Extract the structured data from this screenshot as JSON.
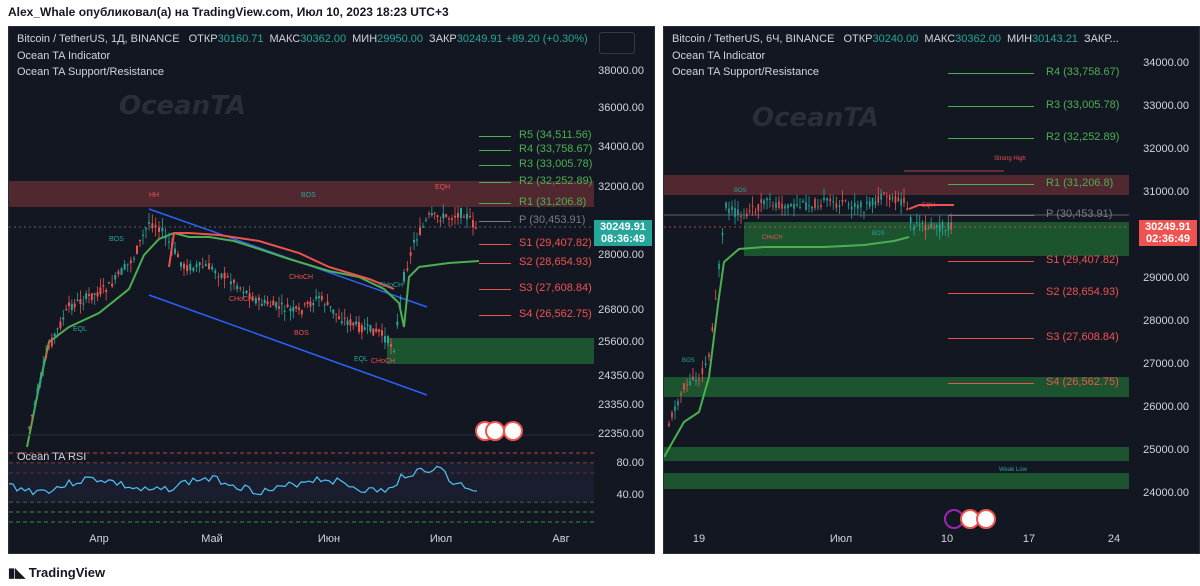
{
  "header": {
    "text": "Alex_Whale опубликовал(а) на TradingView.com, Июл 10, 2023 18:23 UTC+3"
  },
  "footer": {
    "brand": "TradingView"
  },
  "colors": {
    "up": "#26a69a",
    "down": "#ef5350",
    "bg": "#131722",
    "zone_red": "#5d2a33",
    "zone_green": "#1e5b32",
    "trend_blue": "#2962ff"
  },
  "left_chart": {
    "symbol": "Bitcoin / TetherUS, 1Д, BINANCE",
    "ohlc": [
      {
        "k": "ОТКР",
        "v": "30160.71"
      },
      {
        "k": "МАКС",
        "v": "30362.00"
      },
      {
        "k": "МИН",
        "v": "29950.00"
      },
      {
        "k": "ЗАКР",
        "v": "30249.91"
      }
    ],
    "change": "+89.20 (+0.30%)",
    "indicators": [
      "Ocean TA Indicator",
      "Ocean TA Support/Resistance"
    ],
    "watermark": "OceanTA",
    "price_tag": {
      "price": "30249.91",
      "timer": "08:36:49"
    },
    "y_ticks": [
      "38000.00",
      "36000.00",
      "34000.00",
      "32000.00",
      "28000.00",
      "26800.00",
      "25600.00",
      "24350.00",
      "23350.00",
      "22350.00"
    ],
    "x_ticks": [
      "Апр",
      "Май",
      "Июн",
      "Июл",
      "Авг"
    ],
    "levels": [
      {
        "label": "R5 (34,511.56)",
        "type": "r"
      },
      {
        "label": "R4 (33,758.67)",
        "type": "r"
      },
      {
        "label": "R3 (33,005.78)",
        "type": "r"
      },
      {
        "label": "R2 (32,252.89)",
        "type": "r"
      },
      {
        "label": "R1 (31,206.8)",
        "type": "r"
      },
      {
        "label": "P (30,453.91)",
        "type": "p"
      },
      {
        "label": "S1 (29,407.82)",
        "type": "s"
      },
      {
        "label": "S2 (28,654.93)",
        "type": "s"
      },
      {
        "label": "S3 (27,608.84)",
        "type": "s"
      },
      {
        "label": "S4 (26,562.75)",
        "type": "s"
      }
    ],
    "annotations": [
      "HH",
      "BOS",
      "EQH",
      "BOS",
      "EQL",
      "CHoCH",
      "CHoCH",
      "CHoCH",
      "BOS",
      "EQL",
      "CHoCH"
    ],
    "rsi": {
      "label": "Ocean TA RSI",
      "ticks": [
        "80.00",
        "40.00"
      ]
    }
  },
  "right_chart": {
    "symbol": "Bitcoin / TetherUS, 6Ч, BINANCE",
    "ohlc": [
      {
        "k": "ОТКР",
        "v": "30240.00"
      },
      {
        "k": "МАКС",
        "v": "30362.00"
      },
      {
        "k": "МИН",
        "v": "30143.21"
      },
      {
        "k": "ЗАКР...",
        "v": ""
      }
    ],
    "indicators": [
      "Ocean TA Indicator",
      "Ocean TA Support/Resistance"
    ],
    "watermark": "OceanTA",
    "price_tag": {
      "price": "30249.91",
      "timer": "02:36:49"
    },
    "y_ticks": [
      "34000.00",
      "33000.00",
      "32000.00",
      "31000.00",
      "30000.00",
      "29000.00",
      "28000.00",
      "27000.00",
      "26000.00",
      "25000.00",
      "24000.00"
    ],
    "x_ticks": [
      "19",
      "Июл",
      "10",
      "17",
      "24"
    ],
    "levels": [
      {
        "label": "R4 (33,758.67)",
        "type": "r"
      },
      {
        "label": "R3 (33,005.78)",
        "type": "r"
      },
      {
        "label": "R2 (32,252.89)",
        "type": "r"
      },
      {
        "label": "R1 (31,206.8)",
        "type": "r"
      },
      {
        "label": "P (30,453.91)",
        "type": "p"
      },
      {
        "label": "S1 (29,407.82)",
        "type": "s"
      },
      {
        "label": "S2 (28,654.93)",
        "type": "s"
      },
      {
        "label": "S3 (27,608.84)",
        "type": "s"
      },
      {
        "label": "S4 (26,562.75)",
        "type": "s"
      }
    ],
    "annotations": [
      "Strong High",
      "BOS",
      "EQH",
      "CHoCH",
      "BOS",
      "BOS",
      "Weak Low"
    ]
  }
}
